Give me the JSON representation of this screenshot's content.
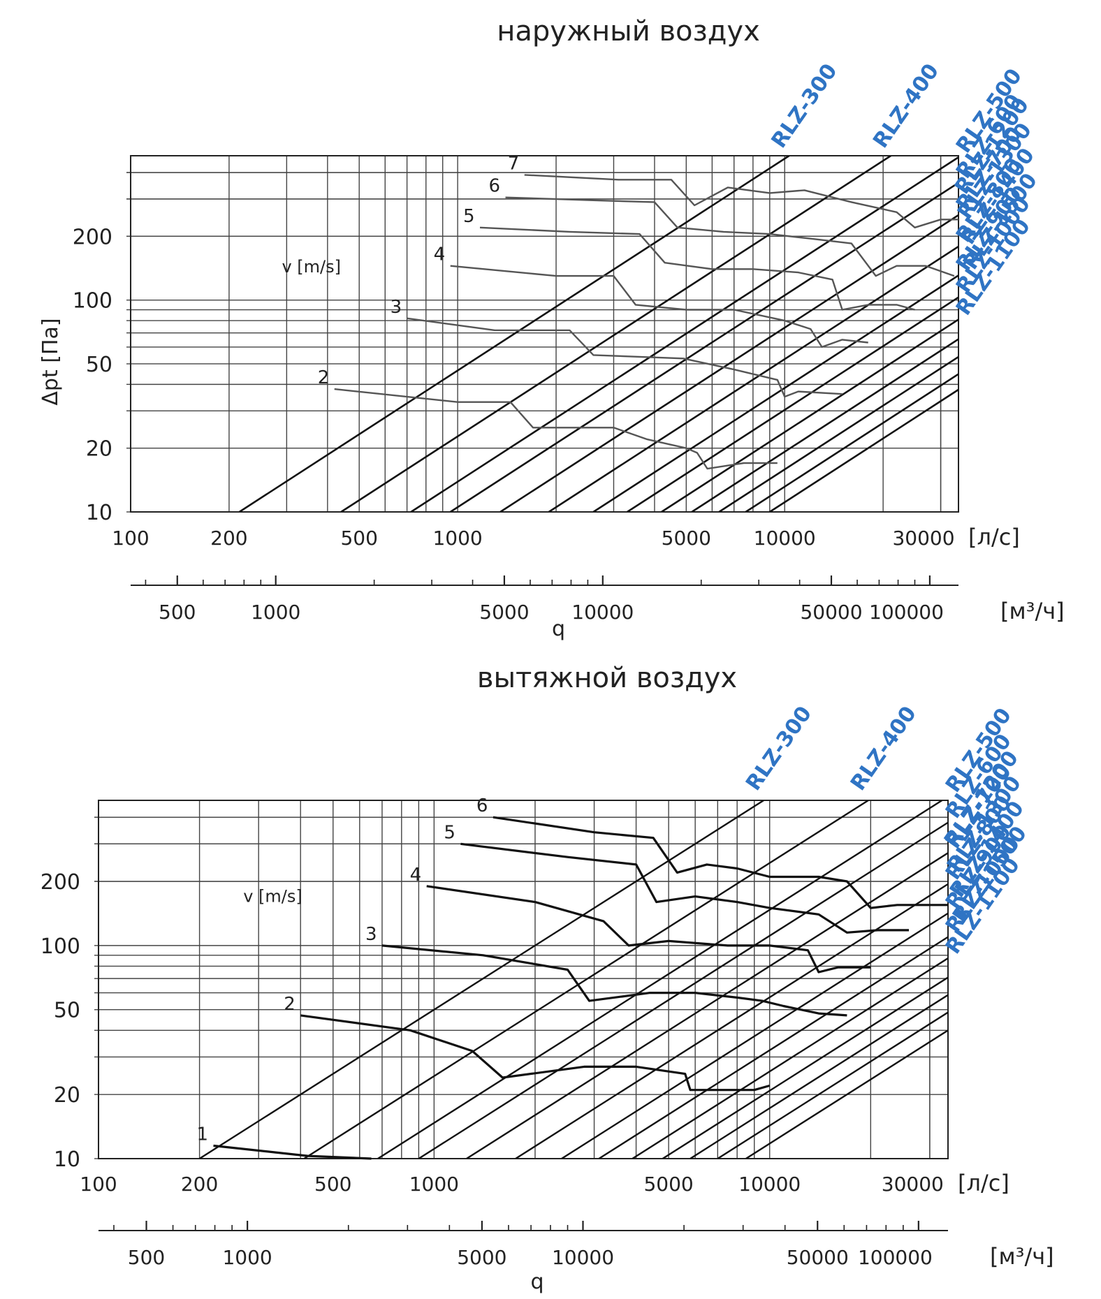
{
  "chart_data": [
    {
      "type": "line",
      "title": "наружный воздух",
      "ylabel": "Δpt [Па]",
      "xlabel": "q",
      "x_unit_primary": "[л/с]",
      "x_unit_secondary": "[м³/ч]",
      "x_scale": "log",
      "y_scale": "log",
      "xlim": [
        100,
        34000
      ],
      "ylim": [
        10,
        480
      ],
      "x_ticks": [
        100,
        200,
        500,
        1000,
        5000,
        10000,
        30000
      ],
      "x_ticks_secondary": [
        500,
        1000,
        5000,
        10000,
        50000,
        100000
      ],
      "y_ticks": [
        10,
        20,
        50,
        100,
        200
      ],
      "annotation": "v [m/s]",
      "line_color": "#555555",
      "label_color": "#2f74c4",
      "models": [
        {
          "name": "RLZ-300",
          "q10": 215
        },
        {
          "name": "RLZ-400",
          "q10": 440
        },
        {
          "name": "RLZ-500",
          "q10": 720
        },
        {
          "name": "RLZ-600",
          "q10": 950
        },
        {
          "name": "RLZ-700",
          "q10": 1350
        },
        {
          "name": "RLZ-800",
          "q10": 1900
        },
        {
          "name": "RLZ-900",
          "q10": 2600
        },
        {
          "name": "RLZ-1000",
          "q10": 3300
        },
        {
          "name": "RLZ-1100",
          "q10": 4200
        },
        {
          "name": "RLZ-1200",
          "q10": 5200
        },
        {
          "name": "RLZ-1300",
          "q10": 6300
        },
        {
          "name": "RLZ-1400",
          "q10": 7600
        },
        {
          "name": "RLZ-1500",
          "q10": 9000
        }
      ],
      "series": [
        {
          "name": "2",
          "points": [
            [
              420,
              38
            ],
            [
              1000,
              33
            ],
            [
              1450,
              33
            ],
            [
              1700,
              25
            ],
            [
              3000,
              25
            ],
            [
              3800,
              22
            ],
            [
              5000,
              20
            ],
            [
              5400,
              19
            ],
            [
              5800,
              16
            ],
            [
              7500,
              17
            ],
            [
              9500,
              17
            ]
          ]
        },
        {
          "name": "3",
          "points": [
            [
              700,
              82
            ],
            [
              1300,
              72
            ],
            [
              2200,
              72
            ],
            [
              2600,
              55
            ],
            [
              4900,
              53
            ],
            [
              7000,
              47
            ],
            [
              9500,
              42
            ],
            [
              10000,
              35
            ],
            [
              11000,
              37
            ],
            [
              15000,
              36
            ]
          ]
        },
        {
          "name": "4",
          "points": [
            [
              950,
              145
            ],
            [
              2000,
              130
            ],
            [
              3000,
              130
            ],
            [
              3500,
              95
            ],
            [
              5000,
              90
            ],
            [
              7000,
              90
            ],
            [
              10000,
              80
            ],
            [
              12000,
              73
            ],
            [
              13000,
              60
            ],
            [
              15000,
              65
            ],
            [
              18000,
              63
            ]
          ]
        },
        {
          "name": "5",
          "points": [
            [
              1170,
              220
            ],
            [
              2200,
              210
            ],
            [
              3600,
              205
            ],
            [
              4300,
              150
            ],
            [
              6000,
              140
            ],
            [
              8000,
              140
            ],
            [
              11000,
              135
            ],
            [
              14000,
              125
            ],
            [
              15000,
              90
            ],
            [
              18000,
              95
            ],
            [
              22000,
              95
            ],
            [
              25000,
              90
            ]
          ]
        },
        {
          "name": "6",
          "points": [
            [
              1400,
              305
            ],
            [
              2700,
              295
            ],
            [
              4000,
              290
            ],
            [
              4700,
              220
            ],
            [
              6500,
              210
            ],
            [
              9000,
              205
            ],
            [
              12000,
              195
            ],
            [
              16000,
              185
            ],
            [
              19000,
              130
            ],
            [
              22000,
              145
            ],
            [
              27000,
              145
            ],
            [
              33000,
              130
            ]
          ]
        },
        {
          "name": "7",
          "points": [
            [
              1600,
              390
            ],
            [
              3100,
              370
            ],
            [
              4500,
              370
            ],
            [
              5300,
              280
            ],
            [
              6700,
              340
            ],
            [
              9000,
              320
            ],
            [
              11500,
              330
            ],
            [
              16000,
              290
            ],
            [
              22000,
              260
            ],
            [
              25000,
              220
            ],
            [
              30000,
              240
            ],
            [
              34000,
              240
            ]
          ]
        }
      ]
    },
    {
      "type": "line",
      "title": "вытяжной воздух",
      "xlabel": "q",
      "x_unit_primary": "[л/с]",
      "x_unit_secondary": "[м³/ч]",
      "x_scale": "log",
      "y_scale": "log",
      "xlim": [
        100,
        34000
      ],
      "ylim": [
        10,
        480
      ],
      "x_ticks": [
        100,
        200,
        500,
        1000,
        5000,
        10000,
        30000
      ],
      "x_ticks_secondary": [
        500,
        1000,
        5000,
        10000,
        50000,
        100000
      ],
      "y_ticks": [
        10,
        20,
        50,
        100,
        200
      ],
      "annotation": "v [m/s]",
      "line_color": "#111111",
      "label_color": "#2f74c4",
      "models": [
        {
          "name": "RLZ-300",
          "q10": 200
        },
        {
          "name": "RLZ-400",
          "q10": 410
        },
        {
          "name": "RLZ-500",
          "q10": 680
        },
        {
          "name": "RLZ-600",
          "q10": 900
        },
        {
          "name": "RLZ-700",
          "q10": 1250
        },
        {
          "name": "RLZ-800",
          "q10": 1750
        },
        {
          "name": "RLZ-900",
          "q10": 2400
        },
        {
          "name": "RLZ-1000",
          "q10": 3100
        },
        {
          "name": "RLZ-1100",
          "q10": 3900
        },
        {
          "name": "RLZ-1200",
          "q10": 4800
        },
        {
          "name": "RLZ-1300",
          "q10": 5800
        },
        {
          "name": "RLZ-1400",
          "q10": 7000
        },
        {
          "name": "RLZ-1500",
          "q10": 8500
        }
      ],
      "series": [
        {
          "name": "1",
          "points": [
            [
              220,
              11.5
            ],
            [
              420,
              10.3
            ],
            [
              650,
              10
            ]
          ]
        },
        {
          "name": "2",
          "points": [
            [
              400,
              47
            ],
            [
              850,
              40
            ],
            [
              1300,
              32
            ],
            [
              1600,
              24
            ],
            [
              2800,
              27
            ],
            [
              4000,
              27
            ],
            [
              5600,
              25
            ],
            [
              5800,
              21
            ],
            [
              7000,
              21
            ],
            [
              9000,
              21
            ],
            [
              10000,
              22
            ]
          ]
        },
        {
          "name": "3",
          "points": [
            [
              700,
              100
            ],
            [
              1400,
              90
            ],
            [
              2500,
              77
            ],
            [
              2900,
              55
            ],
            [
              4400,
              60
            ],
            [
              6000,
              60
            ],
            [
              8000,
              57
            ],
            [
              9500,
              55
            ],
            [
              11000,
              52
            ],
            [
              14000,
              48
            ],
            [
              17000,
              47
            ]
          ]
        },
        {
          "name": "4",
          "points": [
            [
              950,
              190
            ],
            [
              2000,
              160
            ],
            [
              3200,
              130
            ],
            [
              3800,
              100
            ],
            [
              5000,
              105
            ],
            [
              7500,
              100
            ],
            [
              10000,
              100
            ],
            [
              13000,
              95
            ],
            [
              14000,
              75
            ],
            [
              16000,
              79
            ],
            [
              20000,
              79
            ]
          ]
        },
        {
          "name": "5",
          "points": [
            [
              1200,
              300
            ],
            [
              2500,
              260
            ],
            [
              4000,
              240
            ],
            [
              4600,
              160
            ],
            [
              6000,
              170
            ],
            [
              8000,
              160
            ],
            [
              10000,
              150
            ],
            [
              14000,
              140
            ],
            [
              17000,
              115
            ],
            [
              21000,
              118
            ],
            [
              26000,
              118
            ]
          ]
        },
        {
          "name": "6",
          "points": [
            [
              1500,
              400
            ],
            [
              3000,
              340
            ],
            [
              4500,
              320
            ],
            [
              5300,
              220
            ],
            [
              6500,
              240
            ],
            [
              8000,
              230
            ],
            [
              10000,
              210
            ],
            [
              14000,
              210
            ],
            [
              17000,
              200
            ],
            [
              20000,
              150
            ],
            [
              24000,
              155
            ],
            [
              29000,
              155
            ],
            [
              34000,
              155
            ]
          ]
        }
      ]
    }
  ]
}
